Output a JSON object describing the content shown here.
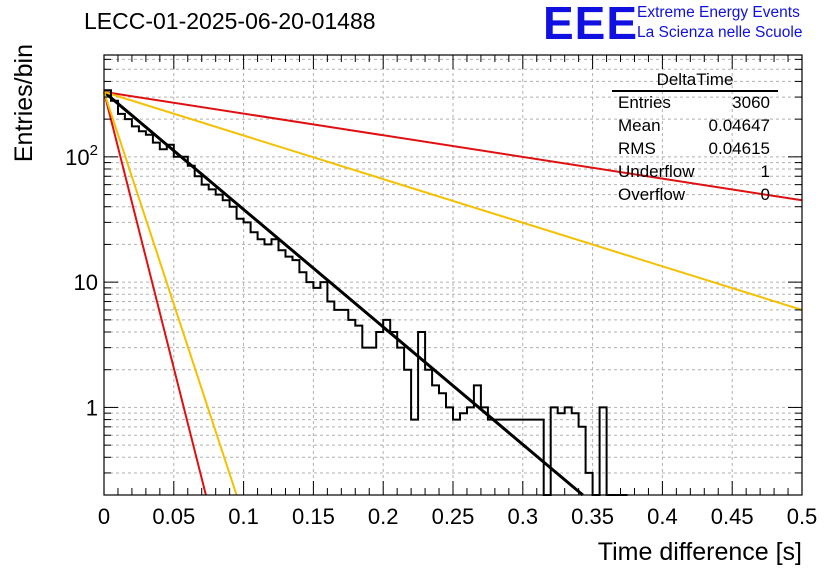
{
  "header": {
    "title": "LECC-01-2025-06-20-01488",
    "logo": "EEE",
    "logo_line1": "Extreme Energy Events",
    "logo_line2": "La Scienza nelle Scuole"
  },
  "stats": {
    "title": "DeltaTime",
    "rows": [
      {
        "label": "Entries",
        "value": "3060"
      },
      {
        "label": "Mean",
        "value": "0.04647"
      },
      {
        "label": "RMS",
        "value": "0.04615"
      },
      {
        "label": "Underflow",
        "value": "1"
      },
      {
        "label": "Overflow",
        "value": "0"
      }
    ]
  },
  "colors": {
    "histogram": "#000000",
    "fit": "#000000",
    "red": "#e01010",
    "orange": "#f5c000",
    "grid": "#b0b0b0",
    "logo": "#1010e0"
  },
  "chart_data": {
    "type": "line",
    "xlabel": "Time difference [s]",
    "ylabel": "Entries/bin",
    "xlim": [
      0,
      0.5
    ],
    "ylim": [
      0.2,
      650
    ],
    "yscale": "log",
    "grid": true,
    "x_ticks": [
      "0",
      "0.05",
      "0.1",
      "0.15",
      "0.2",
      "0.25",
      "0.3",
      "0.35",
      "0.4",
      "0.45",
      "0.5"
    ],
    "y_ticks": [
      {
        "value": 1,
        "label": "1"
      },
      {
        "value": 10,
        "label": "10"
      },
      {
        "value": 100,
        "label": "10^2"
      }
    ],
    "histogram": {
      "bin_width": 0.005,
      "x_start": 0,
      "values": [
        340,
        280,
        220,
        200,
        175,
        160,
        150,
        130,
        115,
        125,
        100,
        100,
        85,
        70,
        60,
        55,
        50,
        45,
        40,
        32,
        30,
        25,
        22,
        20,
        22,
        18,
        16,
        15,
        12,
        10,
        9,
        10,
        7,
        6,
        6,
        5,
        4.5,
        3,
        3,
        4,
        5,
        4,
        3,
        2,
        0.8,
        4,
        2,
        1.5,
        1.3,
        1,
        0.8,
        0.9,
        1,
        1.5,
        1,
        0.8,
        0.8,
        0.8,
        0.8,
        0.8,
        0.8,
        0.8,
        0.8,
        0.1,
        1,
        0.9,
        1,
        0.9,
        0.7,
        0.3,
        0.1,
        1,
        0.1,
        0.1,
        0.1
      ]
    },
    "series": [
      {
        "color": "#000000",
        "x": [
          0,
          0.343
        ],
        "y": [
          330,
          0.2
        ]
      },
      {
        "color": "#e01010",
        "x": [
          0,
          0.5
        ],
        "y": [
          330,
          45
        ]
      },
      {
        "color": "#e01010",
        "x": [
          0,
          0.073
        ],
        "y": [
          330,
          0.2
        ]
      },
      {
        "color": "#f5c000",
        "x": [
          0,
          0.5
        ],
        "y": [
          330,
          6
        ]
      },
      {
        "color": "#f5c000",
        "x": [
          0,
          0.095
        ],
        "y": [
          330,
          0.2
        ]
      }
    ]
  }
}
